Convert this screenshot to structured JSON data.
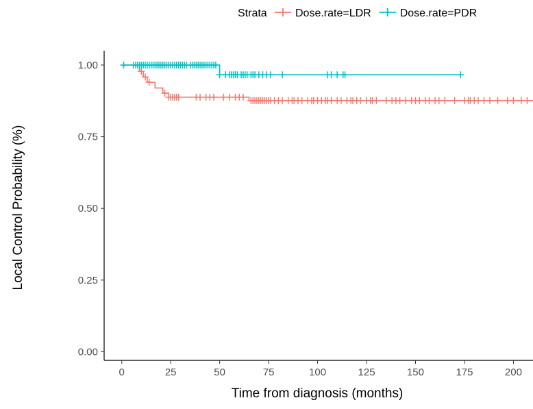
{
  "chart_data": {
    "type": "line",
    "title": "",
    "xlabel": "Time from diagnosis (months)",
    "ylabel": "Local Control Probability (%)",
    "xlim": [
      -9,
      210
    ],
    "ylim": [
      -0.03,
      1.05
    ],
    "x_ticks": [
      0,
      25,
      50,
      75,
      100,
      125,
      150,
      175,
      200
    ],
    "y_ticks": [
      0.0,
      0.25,
      0.5,
      0.75,
      1.0
    ],
    "x_tick_labels": [
      "0",
      "25",
      "50",
      "75",
      "100",
      "125",
      "150",
      "175",
      "200"
    ],
    "y_tick_labels": [
      "0.00",
      "0.25",
      "0.50",
      "0.75",
      "1.00"
    ],
    "grid": false,
    "legend": {
      "title": "Strata",
      "position": "top"
    },
    "series": [
      {
        "name": "Dose.rate=LDR",
        "color": "#F8766D",
        "step_points": [
          [
            0,
            1.0
          ],
          [
            9,
            1.0
          ],
          [
            9,
            0.978
          ],
          [
            11,
            0.978
          ],
          [
            11,
            0.958
          ],
          [
            13,
            0.958
          ],
          [
            13,
            0.94
          ],
          [
            17,
            0.94
          ],
          [
            17,
            0.92
          ],
          [
            21,
            0.92
          ],
          [
            21,
            0.902
          ],
          [
            24,
            0.902
          ],
          [
            24,
            0.888
          ],
          [
            65,
            0.888
          ],
          [
            65,
            0.876
          ],
          [
            210,
            0.876
          ]
        ],
        "censor_times": [
          7,
          10,
          12,
          14,
          22,
          24,
          25,
          26,
          27,
          28,
          29,
          38,
          40,
          43,
          45,
          47,
          52,
          55,
          58,
          60,
          62,
          66,
          67,
          68,
          69,
          70,
          71,
          72,
          73,
          74,
          75,
          76,
          78,
          80,
          82,
          85,
          87,
          88,
          90,
          92,
          95,
          97,
          98,
          100,
          102,
          104,
          105,
          107,
          110,
          112,
          115,
          117,
          118,
          120,
          122,
          125,
          127,
          128,
          130,
          135,
          138,
          140,
          142,
          145,
          148,
          150,
          152,
          155,
          157,
          160,
          162,
          165,
          170,
          175,
          177,
          178,
          180,
          182,
          185,
          188,
          192,
          197,
          200,
          204,
          207
        ]
      },
      {
        "name": "Dose.rate=PDR",
        "color": "#00BFC4",
        "step_points": [
          [
            0,
            1.0
          ],
          [
            50,
            1.0
          ],
          [
            50,
            0.966
          ],
          [
            173,
            0.966
          ]
        ],
        "censor_times": [
          1,
          6,
          8,
          9,
          10,
          11,
          12,
          13,
          14,
          15,
          16,
          17,
          18,
          19,
          20,
          21,
          22,
          23,
          24,
          25,
          26,
          27,
          28,
          29,
          30,
          31,
          32,
          33,
          35,
          36,
          37,
          38,
          39,
          40,
          41,
          42,
          43,
          44,
          45,
          46,
          47,
          48,
          50,
          53,
          55,
          56,
          57,
          58,
          59,
          61,
          62,
          63,
          64,
          66,
          67,
          68,
          70,
          72,
          74,
          76,
          82,
          105,
          107,
          110,
          113,
          114,
          173
        ]
      }
    ]
  }
}
